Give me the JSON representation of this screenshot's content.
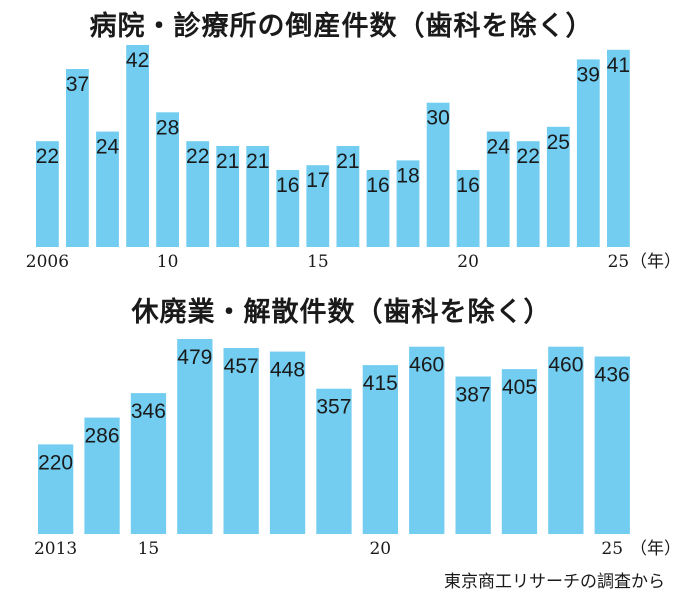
{
  "colors": {
    "bar": "#72CDF0",
    "text": "#1a1a1a"
  },
  "source": "東京商工リサーチの調査から",
  "chart_data": [
    {
      "type": "bar",
      "title": "病院・診療所の倒産件数（歯科を除く）",
      "categories": [
        "2006",
        "2007",
        "2008",
        "2009",
        "2010",
        "2011",
        "2012",
        "2013",
        "2014",
        "2015",
        "2016",
        "2017",
        "2018",
        "2019",
        "2020",
        "2021",
        "2022",
        "2023",
        "2024",
        "2025"
      ],
      "values": [
        22,
        37,
        24,
        42,
        28,
        22,
        21,
        21,
        16,
        17,
        21,
        16,
        18,
        30,
        16,
        24,
        22,
        25,
        39,
        41
      ],
      "tick_labels": [
        {
          "index": 0,
          "label": "2006"
        },
        {
          "index": 4,
          "label": "10"
        },
        {
          "index": 9,
          "label": "15"
        },
        {
          "index": 14,
          "label": "20"
        },
        {
          "index": 19,
          "label": "25"
        }
      ],
      "unit_label": "（年）",
      "ylim": [
        0,
        42
      ]
    },
    {
      "type": "bar",
      "title": "休廃業・解散件数（歯科を除く）",
      "categories": [
        "2013",
        "2014",
        "2015",
        "2016",
        "2017",
        "2018",
        "2019",
        "2020",
        "2021",
        "2022",
        "2023",
        "2024",
        "2025"
      ],
      "values": [
        220,
        286,
        346,
        479,
        457,
        448,
        357,
        415,
        460,
        387,
        405,
        460,
        436
      ],
      "tick_labels": [
        {
          "index": 0,
          "label": "2013"
        },
        {
          "index": 2,
          "label": "15"
        },
        {
          "index": 7,
          "label": "20"
        },
        {
          "index": 12,
          "label": "25"
        }
      ],
      "unit_label": "（年）",
      "ylim": [
        0,
        479
      ]
    }
  ]
}
